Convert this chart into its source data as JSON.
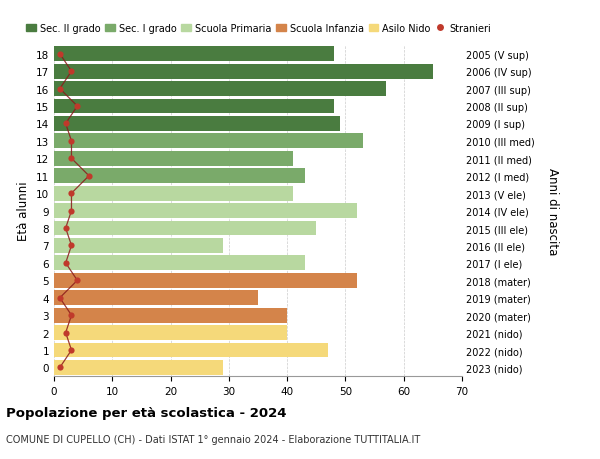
{
  "ages": [
    18,
    17,
    16,
    15,
    14,
    13,
    12,
    11,
    10,
    9,
    8,
    7,
    6,
    5,
    4,
    3,
    2,
    1,
    0
  ],
  "right_labels": [
    "2005 (V sup)",
    "2006 (IV sup)",
    "2007 (III sup)",
    "2008 (II sup)",
    "2009 (I sup)",
    "2010 (III med)",
    "2011 (II med)",
    "2012 (I med)",
    "2013 (V ele)",
    "2014 (IV ele)",
    "2015 (III ele)",
    "2016 (II ele)",
    "2017 (I ele)",
    "2018 (mater)",
    "2019 (mater)",
    "2020 (mater)",
    "2021 (nido)",
    "2022 (nido)",
    "2023 (nido)"
  ],
  "bar_values": [
    48,
    65,
    57,
    48,
    49,
    53,
    41,
    43,
    41,
    52,
    45,
    29,
    43,
    52,
    35,
    40,
    40,
    47,
    29
  ],
  "bar_colors": [
    "#4a7c40",
    "#4a7c40",
    "#4a7c40",
    "#4a7c40",
    "#4a7c40",
    "#7aaa6a",
    "#7aaa6a",
    "#7aaa6a",
    "#b8d8a0",
    "#b8d8a0",
    "#b8d8a0",
    "#b8d8a0",
    "#b8d8a0",
    "#d4844a",
    "#d4844a",
    "#d4844a",
    "#f5d97a",
    "#f5d97a",
    "#f5d97a"
  ],
  "stranieri_values": [
    1,
    3,
    1,
    4,
    2,
    3,
    3,
    6,
    3,
    3,
    2,
    3,
    2,
    4,
    1,
    3,
    2,
    3,
    1
  ],
  "legend_labels": [
    "Sec. II grado",
    "Sec. I grado",
    "Scuola Primaria",
    "Scuola Infanzia",
    "Asilo Nido",
    "Stranieri"
  ],
  "legend_colors": [
    "#4a7c40",
    "#7aaa6a",
    "#b8d8a0",
    "#d4844a",
    "#f5d97a",
    "#c0392b"
  ],
  "ylabel": "Età alunni",
  "right_ylabel": "Anni di nascita",
  "title": "Popolazione per età scolastica - 2024",
  "subtitle": "COMUNE DI CUPELLO (CH) - Dati ISTAT 1° gennaio 2024 - Elaborazione TUTTITALIA.IT",
  "xlim": [
    0,
    70
  ],
  "xticks": [
    0,
    10,
    20,
    30,
    40,
    50,
    60,
    70
  ],
  "background_color": "#ffffff",
  "bar_height": 0.85
}
